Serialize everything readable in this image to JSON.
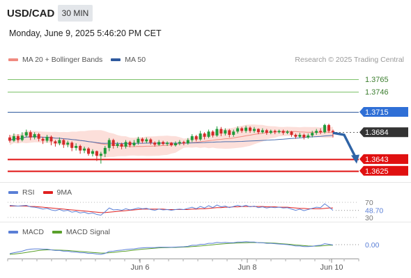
{
  "header": {
    "pair": "USD/CAD",
    "timeframe": "30 MIN",
    "datetime": "Monday, June 9, 2025 5:46:20 PM CET"
  },
  "legend_main": [
    {
      "label": "MA 20 + Bollinger Bands",
      "color": "#f08a80"
    },
    {
      "label": "MA 50",
      "color": "#2f5a9e"
    }
  ],
  "credit": "Research © 2025 Trading Central",
  "legend_rsi": [
    {
      "label": "RSI",
      "color": "#5a7fd6"
    },
    {
      "label": "9MA",
      "color": "#e02020"
    }
  ],
  "legend_macd": [
    {
      "label": "MACD",
      "color": "#5a7fd6"
    },
    {
      "label": "MACD Signal",
      "color": "#5aa02c"
    }
  ],
  "colors": {
    "up": "#1f9a3a",
    "down": "#d42a2a",
    "bollinger_fill": "#fbd9d3",
    "ma20": "#f08a80",
    "ma50": "#4a6fb0",
    "resistance": "#7dc26a",
    "pivot": "#2f5a9e",
    "support": "#e01010",
    "last": "#333333",
    "arrow": "#2f64a6"
  },
  "chart_data": {
    "type": "candlestick",
    "x_ticks": [
      "Jun 6",
      "Jun 8",
      "Jun 10"
    ],
    "ylim": [
      1.3612,
      1.3782
    ],
    "levels": [
      {
        "value": 1.3765,
        "label": "1.3765",
        "kind": "resistance"
      },
      {
        "value": 1.3746,
        "label": "1.3746",
        "kind": "resistance"
      },
      {
        "value": 1.3715,
        "label": "1.3715",
        "kind": "pivot"
      },
      {
        "value": 1.3684,
        "label": "1.3684",
        "kind": "last"
      },
      {
        "value": 1.3643,
        "label": "1.3643",
        "kind": "support"
      },
      {
        "value": 1.3625,
        "label": "1.3625",
        "kind": "support"
      }
    ],
    "arrow": {
      "from_index": 78,
      "from": 1.3683,
      "to_index": 86,
      "to": 1.3638
    },
    "candles": [
      [
        1.3676,
        1.3671,
        1.368,
        1.3668
      ],
      [
        1.3671,
        1.3678,
        1.3682,
        1.3669
      ],
      [
        1.3678,
        1.3672,
        1.3681,
        1.3668
      ],
      [
        1.3672,
        1.3679,
        1.3684,
        1.367
      ],
      [
        1.3679,
        1.3684,
        1.3688,
        1.3676
      ],
      [
        1.3684,
        1.3676,
        1.3687,
        1.3672
      ],
      [
        1.3676,
        1.3681,
        1.3684,
        1.3673
      ],
      [
        1.3681,
        1.3674,
        1.3683,
        1.367
      ],
      [
        1.3674,
        1.3671,
        1.3677,
        1.3666
      ],
      [
        1.3671,
        1.3677,
        1.368,
        1.3668
      ],
      [
        1.3677,
        1.367,
        1.3679,
        1.3664
      ],
      [
        1.367,
        1.3667,
        1.3672,
        1.3662
      ],
      [
        1.3667,
        1.3672,
        1.3676,
        1.3664
      ],
      [
        1.3672,
        1.3665,
        1.3674,
        1.366
      ],
      [
        1.3665,
        1.3668,
        1.3671,
        1.3661
      ],
      [
        1.3668,
        1.366,
        1.367,
        1.3655
      ],
      [
        1.366,
        1.3663,
        1.3667,
        1.3656
      ],
      [
        1.3663,
        1.3656,
        1.3665,
        1.3651
      ],
      [
        1.3656,
        1.3659,
        1.3662,
        1.3652
      ],
      [
        1.3659,
        1.3651,
        1.3661,
        1.3648
      ],
      [
        1.3651,
        1.3655,
        1.3658,
        1.3647
      ],
      [
        1.3655,
        1.3648,
        1.3656,
        1.364
      ],
      [
        1.3648,
        1.3651,
        1.3654,
        1.3636
      ],
      [
        1.3651,
        1.366,
        1.3663,
        1.3646
      ],
      [
        1.366,
        1.3672,
        1.3675,
        1.3655
      ],
      [
        1.3672,
        1.3663,
        1.3674,
        1.3659
      ],
      [
        1.3663,
        1.3666,
        1.3669,
        1.366
      ],
      [
        1.3666,
        1.3662,
        1.3668,
        1.3658
      ],
      [
        1.3662,
        1.3669,
        1.3672,
        1.3659
      ],
      [
        1.3669,
        1.3664,
        1.3671,
        1.3661
      ],
      [
        1.3664,
        1.3668,
        1.3672,
        1.3662
      ],
      [
        1.3668,
        1.3674,
        1.3677,
        1.3665
      ],
      [
        1.3674,
        1.367,
        1.3676,
        1.3667
      ],
      [
        1.367,
        1.3673,
        1.3676,
        1.3667
      ],
      [
        1.3673,
        1.3668,
        1.3675,
        1.3665
      ],
      [
        1.3668,
        1.3665,
        1.367,
        1.3662
      ],
      [
        1.3665,
        1.3669,
        1.3672,
        1.3663
      ],
      [
        1.3669,
        1.3666,
        1.3671,
        1.3664
      ],
      [
        1.3666,
        1.3668,
        1.367,
        1.3663
      ],
      [
        1.3668,
        1.3664,
        1.3669,
        1.3662
      ],
      [
        1.3664,
        1.3667,
        1.367,
        1.3662
      ],
      [
        1.3667,
        1.3669,
        1.3672,
        1.3664
      ],
      [
        1.3669,
        1.3667,
        1.3671,
        1.3664
      ],
      [
        1.3667,
        1.3672,
        1.3675,
        1.3665
      ],
      [
        1.3672,
        1.3678,
        1.3681,
        1.3669
      ],
      [
        1.3678,
        1.3673,
        1.368,
        1.367
      ],
      [
        1.3673,
        1.3682,
        1.3686,
        1.3671
      ],
      [
        1.3682,
        1.3677,
        1.3684,
        1.3673
      ],
      [
        1.3677,
        1.3685,
        1.3688,
        1.3675
      ],
      [
        1.3685,
        1.3679,
        1.3687,
        1.3676
      ],
      [
        1.3679,
        1.3689,
        1.3693,
        1.3677
      ],
      [
        1.3689,
        1.3682,
        1.3692,
        1.3678
      ],
      [
        1.3682,
        1.3687,
        1.369,
        1.3679
      ],
      [
        1.3687,
        1.368,
        1.3689,
        1.3676
      ],
      [
        1.368,
        1.3685,
        1.3688,
        1.3677
      ],
      [
        1.3685,
        1.369,
        1.3693,
        1.3682
      ],
      [
        1.369,
        1.3686,
        1.3692,
        1.3683
      ],
      [
        1.3686,
        1.3691,
        1.3694,
        1.3683
      ],
      [
        1.3691,
        1.3686,
        1.3693,
        1.3683
      ],
      [
        1.3686,
        1.3689,
        1.3692,
        1.3683
      ],
      [
        1.3689,
        1.3684,
        1.369,
        1.3681
      ],
      [
        1.3684,
        1.3687,
        1.369,
        1.3682
      ],
      [
        1.3687,
        1.3683,
        1.3689,
        1.368
      ],
      [
        1.3683,
        1.3686,
        1.3688,
        1.3681
      ],
      [
        1.3686,
        1.3684,
        1.3688,
        1.3681
      ],
      [
        1.3684,
        1.3686,
        1.3688,
        1.3682
      ],
      [
        1.3686,
        1.3683,
        1.3688,
        1.368
      ],
      [
        1.3683,
        1.3685,
        1.3687,
        1.3681
      ],
      [
        1.3685,
        1.368,
        1.3686,
        1.3677
      ],
      [
        1.368,
        1.3677,
        1.3682,
        1.3674
      ],
      [
        1.3677,
        1.368,
        1.3683,
        1.3675
      ],
      [
        1.368,
        1.3676,
        1.3682,
        1.3673
      ],
      [
        1.3676,
        1.3679,
        1.3682,
        1.3674
      ],
      [
        1.3679,
        1.3683,
        1.3686,
        1.3676
      ],
      [
        1.3683,
        1.3686,
        1.3689,
        1.368
      ],
      [
        1.3686,
        1.3684,
        1.369,
        1.3681
      ],
      [
        1.3684,
        1.3695,
        1.3697,
        1.3682
      ],
      [
        1.3695,
        1.3686,
        1.3697,
        1.3683
      ],
      [
        1.3686,
        1.3684,
        1.3688,
        1.3676
      ]
    ],
    "rsi": {
      "levels": [
        70,
        30
      ],
      "level_labels": [
        "70",
        "30"
      ],
      "current": 48.7,
      "current_label": "48.70",
      "rsi": [
        62,
        61,
        60,
        61,
        62,
        58,
        57,
        55,
        52,
        54,
        50,
        48,
        51,
        47,
        49,
        44,
        46,
        42,
        44,
        40,
        42,
        38,
        36,
        45,
        55,
        50,
        51,
        49,
        53,
        50,
        52,
        55,
        53,
        54,
        51,
        49,
        52,
        50,
        51,
        49,
        51,
        52,
        51,
        54,
        57,
        53,
        59,
        55,
        61,
        56,
        63,
        58,
        60,
        56,
        59,
        62,
        59,
        62,
        58,
        60,
        56,
        58,
        55,
        57,
        56,
        57,
        55,
        56,
        52,
        49,
        52,
        48,
        51,
        54,
        57,
        56,
        66,
        58,
        48.7
      ],
      "ma9": [
        60,
        60,
        60,
        60,
        60,
        59,
        59,
        58,
        57,
        56,
        55,
        54,
        53,
        52,
        51,
        50,
        49,
        48,
        47,
        46,
        45,
        44,
        43,
        43,
        44,
        45,
        46,
        47,
        48,
        49,
        50,
        51,
        52,
        52,
        52,
        52,
        52,
        52,
        51,
        51,
        51,
        51,
        51,
        51,
        52,
        52,
        53,
        53,
        54,
        55,
        56,
        56,
        57,
        57,
        58,
        58,
        59,
        59,
        59,
        59,
        59,
        59,
        58,
        58,
        58,
        57,
        57,
        57,
        56,
        55,
        54,
        54,
        53,
        53,
        53,
        53,
        54,
        55,
        55
      ]
    },
    "macd": {
      "zero_label": "0.00",
      "macd": [
        -0.00055,
        -0.0005,
        -0.00045,
        -0.0004,
        -0.00032,
        -0.00028,
        -0.00026,
        -0.00026,
        -0.00028,
        -0.00028,
        -0.00032,
        -0.00036,
        -0.00036,
        -0.0004,
        -0.0004,
        -0.00045,
        -0.00046,
        -0.0005,
        -0.0005,
        -0.00054,
        -0.00054,
        -0.00058,
        -0.0006,
        -0.00054,
        -0.00042,
        -0.0004,
        -0.00036,
        -0.00034,
        -0.0003,
        -0.00028,
        -0.00026,
        -0.00022,
        -0.0002,
        -0.00018,
        -0.00018,
        -0.00018,
        -0.00016,
        -0.00016,
        -0.00016,
        -0.00016,
        -0.00015,
        -0.00014,
        -0.00013,
        -0.0001,
        -4e-05,
        -4e-05,
        2e-05,
        2e-05,
        8e-05,
        8e-05,
        0.00014,
        0.00012,
        0.00014,
        0.00012,
        0.00012,
        0.00016,
        0.00016,
        0.00018,
        0.00016,
        0.00016,
        0.00012,
        0.00012,
        8e-05,
        8e-05,
        6e-05,
        4e-05,
        2e-05,
        0.0,
        -4e-05,
        -8e-05,
        -8e-05,
        -0.00012,
        -0.00012,
        -0.0001,
        -6e-05,
        -4e-05,
        6e-05,
        2e-05,
        -2e-05
      ],
      "signal": [
        -0.0006,
        -0.00058,
        -0.00055,
        -0.00052,
        -0.00048,
        -0.00044,
        -0.0004,
        -0.00036,
        -0.00034,
        -0.00032,
        -0.00032,
        -0.00033,
        -0.00034,
        -0.00035,
        -0.00036,
        -0.00038,
        -0.0004,
        -0.00042,
        -0.00044,
        -0.00046,
        -0.00048,
        -0.0005,
        -0.00052,
        -0.00052,
        -0.0005,
        -0.00048,
        -0.00045,
        -0.00042,
        -0.0004,
        -0.00037,
        -0.00034,
        -0.00031,
        -0.00028,
        -0.00026,
        -0.00024,
        -0.00022,
        -0.0002,
        -0.00019,
        -0.00018,
        -0.00017,
        -0.00017,
        -0.00016,
        -0.00015,
        -0.00014,
        -0.00012,
        -0.0001,
        -8e-05,
        -6e-05,
        -3e-05,
        -1e-05,
        2e-05,
        4e-05,
        6e-05,
        8e-05,
        9e-05,
        0.0001,
        0.00011,
        0.00012,
        0.00013,
        0.00013,
        0.00013,
        0.00012,
        0.00011,
        0.0001,
        9e-05,
        7e-05,
        5e-05,
        3e-05,
        1e-05,
        -2e-05,
        -4e-05,
        -6e-05,
        -8e-05,
        -9e-05,
        -9e-05,
        -8e-05,
        -6e-05,
        -4e-05,
        -3e-05
      ]
    }
  }
}
